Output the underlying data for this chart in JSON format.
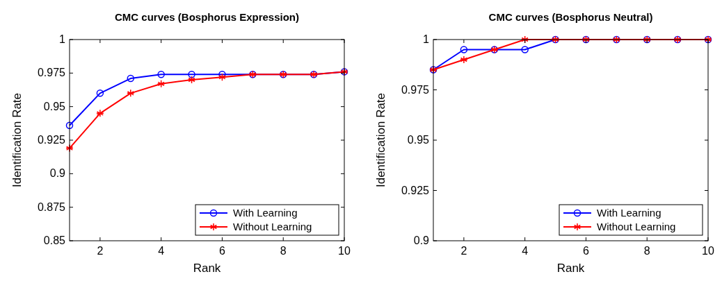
{
  "chart_data": [
    {
      "type": "line",
      "title": "CMC curves (Bosphorus Expression)",
      "xlabel": "Rank",
      "ylabel": "Identification Rate",
      "x": [
        1,
        2,
        3,
        4,
        5,
        6,
        7,
        8,
        9,
        10
      ],
      "xlim": [
        1,
        10
      ],
      "xticks": [
        2,
        4,
        6,
        8,
        10
      ],
      "ylim": [
        0.85,
        1
      ],
      "yticks": [
        0.85,
        0.875,
        0.9,
        0.925,
        0.95,
        0.975,
        1
      ],
      "grid": false,
      "legend": "bottom right",
      "series": [
        {
          "name": "With Learning",
          "color": "#0000ff",
          "marker": "circle",
          "values": [
            0.936,
            0.96,
            0.971,
            0.974,
            0.974,
            0.974,
            0.974,
            0.974,
            0.974,
            0.976
          ]
        },
        {
          "name": "Without Learning",
          "color": "#ff0000",
          "marker": "cross",
          "values": [
            0.919,
            0.945,
            0.96,
            0.967,
            0.97,
            0.972,
            0.974,
            0.974,
            0.974,
            0.976
          ]
        }
      ]
    },
    {
      "type": "line",
      "title": "CMC curves (Bosphorus Neutral)",
      "xlabel": "Rank",
      "ylabel": "Identification Rate",
      "x": [
        1,
        2,
        3,
        4,
        5,
        6,
        7,
        8,
        9,
        10
      ],
      "xlim": [
        1,
        10
      ],
      "xticks": [
        2,
        4,
        6,
        8,
        10
      ],
      "ylim": [
        0.9,
        1
      ],
      "yticks": [
        0.9,
        0.925,
        0.95,
        0.975,
        1
      ],
      "grid": false,
      "legend": "bottom right",
      "series": [
        {
          "name": "With Learning",
          "color": "#0000ff",
          "marker": "circle",
          "values": [
            0.985,
            0.995,
            0.995,
            0.995,
            1,
            1,
            1,
            1,
            1,
            1
          ]
        },
        {
          "name": "Without Learning",
          "color": "#ff0000",
          "marker": "cross",
          "values": [
            0.985,
            0.99,
            0.995,
            1,
            1,
            1,
            1,
            1,
            1,
            1
          ]
        }
      ]
    }
  ]
}
